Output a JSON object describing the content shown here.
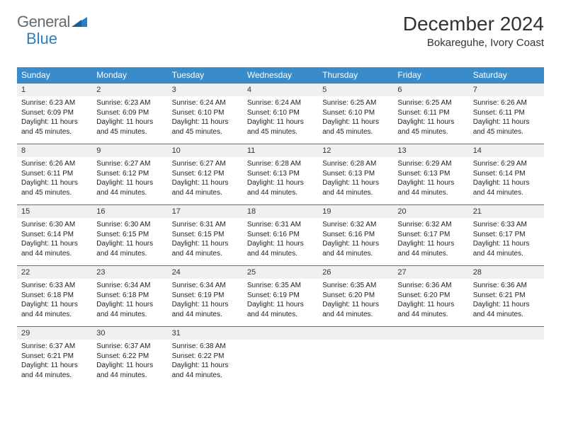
{
  "brand": {
    "name_a": "General",
    "name_b": "Blue"
  },
  "title": "December 2024",
  "location": "Bokareguhe, Ivory Coast",
  "colors": {
    "header_bg": "#3a8bc9",
    "border": "#2b7cc0",
    "daynum_bg": "#eef0f1",
    "text": "#222222",
    "logo_gray": "#5f6a72",
    "logo_blue": "#2b7cc0"
  },
  "day_headers": [
    "Sunday",
    "Monday",
    "Tuesday",
    "Wednesday",
    "Thursday",
    "Friday",
    "Saturday"
  ],
  "weeks": [
    [
      {
        "n": "1",
        "sr": "6:23 AM",
        "ss": "6:09 PM",
        "dl": "11 hours and 45 minutes."
      },
      {
        "n": "2",
        "sr": "6:23 AM",
        "ss": "6:09 PM",
        "dl": "11 hours and 45 minutes."
      },
      {
        "n": "3",
        "sr": "6:24 AM",
        "ss": "6:10 PM",
        "dl": "11 hours and 45 minutes."
      },
      {
        "n": "4",
        "sr": "6:24 AM",
        "ss": "6:10 PM",
        "dl": "11 hours and 45 minutes."
      },
      {
        "n": "5",
        "sr": "6:25 AM",
        "ss": "6:10 PM",
        "dl": "11 hours and 45 minutes."
      },
      {
        "n": "6",
        "sr": "6:25 AM",
        "ss": "6:11 PM",
        "dl": "11 hours and 45 minutes."
      },
      {
        "n": "7",
        "sr": "6:26 AM",
        "ss": "6:11 PM",
        "dl": "11 hours and 45 minutes."
      }
    ],
    [
      {
        "n": "8",
        "sr": "6:26 AM",
        "ss": "6:11 PM",
        "dl": "11 hours and 45 minutes."
      },
      {
        "n": "9",
        "sr": "6:27 AM",
        "ss": "6:12 PM",
        "dl": "11 hours and 44 minutes."
      },
      {
        "n": "10",
        "sr": "6:27 AM",
        "ss": "6:12 PM",
        "dl": "11 hours and 44 minutes."
      },
      {
        "n": "11",
        "sr": "6:28 AM",
        "ss": "6:13 PM",
        "dl": "11 hours and 44 minutes."
      },
      {
        "n": "12",
        "sr": "6:28 AM",
        "ss": "6:13 PM",
        "dl": "11 hours and 44 minutes."
      },
      {
        "n": "13",
        "sr": "6:29 AM",
        "ss": "6:13 PM",
        "dl": "11 hours and 44 minutes."
      },
      {
        "n": "14",
        "sr": "6:29 AM",
        "ss": "6:14 PM",
        "dl": "11 hours and 44 minutes."
      }
    ],
    [
      {
        "n": "15",
        "sr": "6:30 AM",
        "ss": "6:14 PM",
        "dl": "11 hours and 44 minutes."
      },
      {
        "n": "16",
        "sr": "6:30 AM",
        "ss": "6:15 PM",
        "dl": "11 hours and 44 minutes."
      },
      {
        "n": "17",
        "sr": "6:31 AM",
        "ss": "6:15 PM",
        "dl": "11 hours and 44 minutes."
      },
      {
        "n": "18",
        "sr": "6:31 AM",
        "ss": "6:16 PM",
        "dl": "11 hours and 44 minutes."
      },
      {
        "n": "19",
        "sr": "6:32 AM",
        "ss": "6:16 PM",
        "dl": "11 hours and 44 minutes."
      },
      {
        "n": "20",
        "sr": "6:32 AM",
        "ss": "6:17 PM",
        "dl": "11 hours and 44 minutes."
      },
      {
        "n": "21",
        "sr": "6:33 AM",
        "ss": "6:17 PM",
        "dl": "11 hours and 44 minutes."
      }
    ],
    [
      {
        "n": "22",
        "sr": "6:33 AM",
        "ss": "6:18 PM",
        "dl": "11 hours and 44 minutes."
      },
      {
        "n": "23",
        "sr": "6:34 AM",
        "ss": "6:18 PM",
        "dl": "11 hours and 44 minutes."
      },
      {
        "n": "24",
        "sr": "6:34 AM",
        "ss": "6:19 PM",
        "dl": "11 hours and 44 minutes."
      },
      {
        "n": "25",
        "sr": "6:35 AM",
        "ss": "6:19 PM",
        "dl": "11 hours and 44 minutes."
      },
      {
        "n": "26",
        "sr": "6:35 AM",
        "ss": "6:20 PM",
        "dl": "11 hours and 44 minutes."
      },
      {
        "n": "27",
        "sr": "6:36 AM",
        "ss": "6:20 PM",
        "dl": "11 hours and 44 minutes."
      },
      {
        "n": "28",
        "sr": "6:36 AM",
        "ss": "6:21 PM",
        "dl": "11 hours and 44 minutes."
      }
    ],
    [
      {
        "n": "29",
        "sr": "6:37 AM",
        "ss": "6:21 PM",
        "dl": "11 hours and 44 minutes."
      },
      {
        "n": "30",
        "sr": "6:37 AM",
        "ss": "6:22 PM",
        "dl": "11 hours and 44 minutes."
      },
      {
        "n": "31",
        "sr": "6:38 AM",
        "ss": "6:22 PM",
        "dl": "11 hours and 44 minutes."
      },
      null,
      null,
      null,
      null
    ]
  ],
  "labels": {
    "sunrise": "Sunrise:",
    "sunset": "Sunset:",
    "daylight": "Daylight:"
  }
}
